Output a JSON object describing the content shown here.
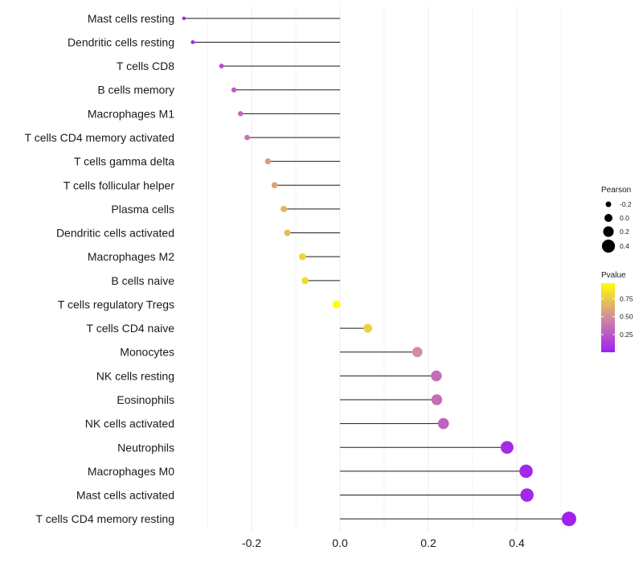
{
  "chart_data": {
    "type": "lollipop",
    "title": "",
    "xlabel": "",
    "ylabel": "",
    "xlim": [
      -0.36,
      0.54
    ],
    "xticks": [
      -0.2,
      0.0,
      0.2,
      0.4
    ],
    "xtick_labels": [
      "-0.2",
      "0.0",
      "0.2",
      "0.4"
    ],
    "grid": true,
    "categories": [
      "Mast cells resting",
      "Dendritic cells resting",
      "T cells CD8",
      "B cells memory",
      "Macrophages M1",
      "T cells CD4 memory activated",
      "T cells gamma delta",
      "T cells follicular helper",
      "Plasma cells",
      "Dendritic cells activated",
      "Macrophages M2",
      "B cells naive",
      "T cells regulatory  Tregs",
      "T cells CD4 naive",
      "Monocytes",
      "NK cells resting",
      "Eosinophils",
      "NK cells activated",
      "Neutrophils",
      "Macrophages M0",
      "Mast cells activated",
      "T cells CD4 memory resting"
    ],
    "pearson": [
      -0.353,
      -0.333,
      -0.268,
      -0.24,
      -0.225,
      -0.21,
      -0.163,
      -0.148,
      -0.127,
      -0.119,
      -0.085,
      -0.079,
      -0.008,
      0.063,
      0.175,
      0.218,
      0.219,
      0.234,
      0.378,
      0.421,
      0.423,
      0.518
    ],
    "pvalue": [
      0.02,
      0.05,
      0.2,
      0.28,
      0.32,
      0.38,
      0.55,
      0.6,
      0.66,
      0.7,
      0.8,
      0.82,
      0.97,
      0.78,
      0.5,
      0.35,
      0.35,
      0.3,
      0.05,
      0.03,
      0.03,
      0.0
    ],
    "size_legend": {
      "title": "Pearson",
      "labels": [
        "-0.2",
        "0.0",
        "0.2",
        "0.4"
      ],
      "values": [
        -0.2,
        0.0,
        0.2,
        0.4
      ]
    },
    "color_legend": {
      "title": "Pvalue",
      "labels": [
        "0.75",
        "0.50",
        "0.25"
      ],
      "values": [
        0.75,
        0.5,
        0.25
      ],
      "range": [
        0.0,
        0.97
      ],
      "low_color": "#a020f0",
      "mid_color": "#d28aa0",
      "high_color": "#ffff00"
    },
    "line_color": "#1a1a1a",
    "grid_color": "#ebebeb"
  }
}
